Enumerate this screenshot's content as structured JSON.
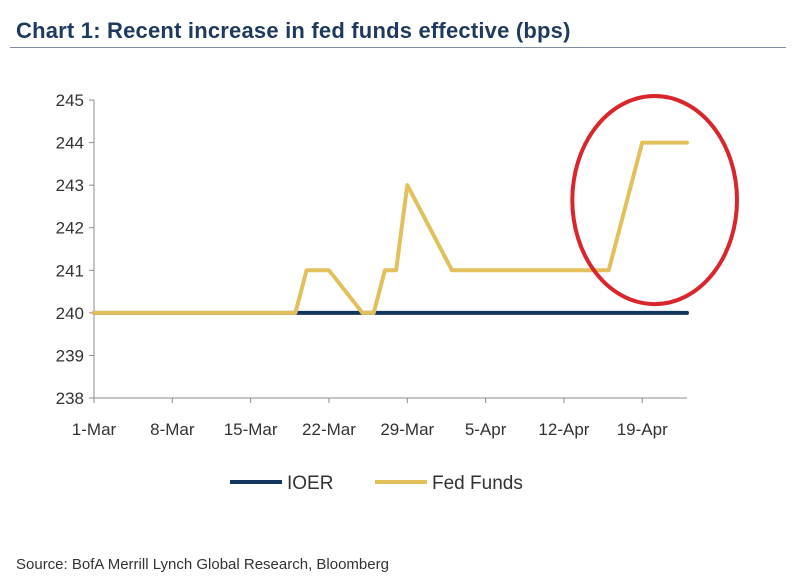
{
  "header": {
    "title": "Chart 1: Recent increase in fed funds effective (bps)"
  },
  "footer": {
    "source": "Source: BofA Merrill Lynch Global Research, Bloomberg"
  },
  "colors": {
    "ioer": "#14365e",
    "fed_funds": "#e2c15c",
    "highlight_circle": "#d9262c"
  },
  "chart_data": {
    "type": "line",
    "title": "Chart 1: Recent increase in fed funds effective (bps)",
    "xlabel": "",
    "ylabel": "",
    "ylim": [
      238,
      245
    ],
    "yticks": [
      238,
      239,
      240,
      241,
      242,
      243,
      244,
      245
    ],
    "xlim": [
      "2018-03-01",
      "2018-04-23"
    ],
    "xtick_labels": [
      "1-Mar",
      "8-Mar",
      "15-Mar",
      "22-Mar",
      "29-Mar",
      "5-Apr",
      "12-Apr",
      "19-Apr"
    ],
    "xtick_dates": [
      "2018-03-01",
      "2018-03-08",
      "2018-03-15",
      "2018-03-22",
      "2018-03-29",
      "2018-04-05",
      "2018-04-12",
      "2018-04-19"
    ],
    "grid": false,
    "legend_position": "bottom",
    "highlight": {
      "shape": "ellipse",
      "x_range": [
        "2018-04-14",
        "2018-04-23"
      ],
      "y_range": [
        240.3,
        245.0
      ]
    },
    "series": [
      {
        "name": "IOER",
        "color": "#14365e",
        "points": [
          {
            "x": "2018-03-01",
            "y": 240
          },
          {
            "x": "2018-04-23",
            "y": 240
          }
        ]
      },
      {
        "name": "Fed Funds",
        "color": "#e2c15c",
        "points": [
          {
            "x": "2018-03-01",
            "y": 240
          },
          {
            "x": "2018-03-19",
            "y": 240
          },
          {
            "x": "2018-03-20",
            "y": 241
          },
          {
            "x": "2018-03-22",
            "y": 241
          },
          {
            "x": "2018-03-25",
            "y": 240
          },
          {
            "x": "2018-03-26",
            "y": 240
          },
          {
            "x": "2018-03-27",
            "y": 241
          },
          {
            "x": "2018-03-28",
            "y": 241
          },
          {
            "x": "2018-03-29",
            "y": 243
          },
          {
            "x": "2018-04-02",
            "y": 241
          },
          {
            "x": "2018-04-16",
            "y": 241
          },
          {
            "x": "2018-04-19",
            "y": 244
          },
          {
            "x": "2018-04-23",
            "y": 244
          }
        ]
      }
    ]
  }
}
